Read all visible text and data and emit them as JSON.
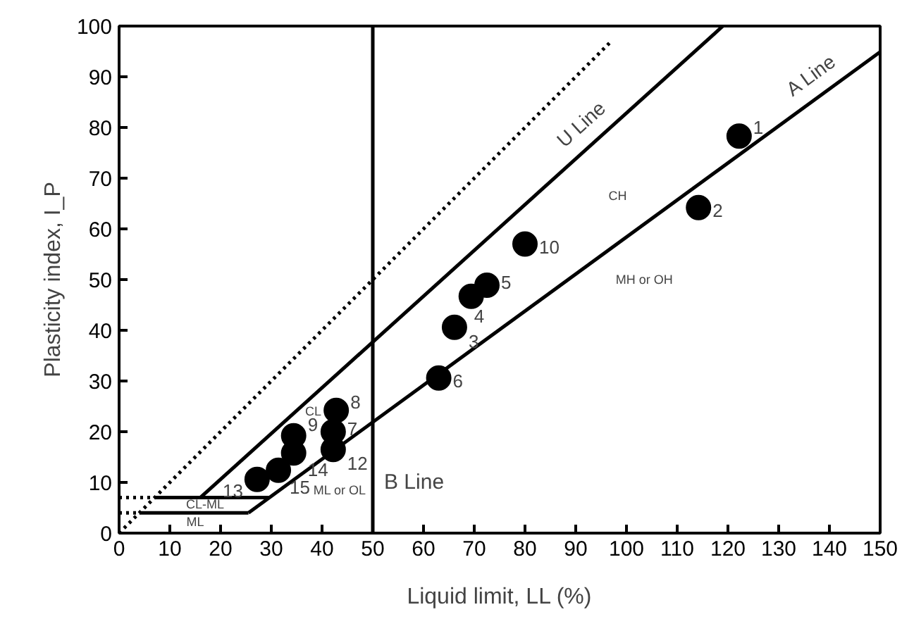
{
  "chart_data": {
    "type": "scatter",
    "xlabel": "Liquid limit, LL (%)",
    "ylabel": "Plasticity index, I_P",
    "xlim": [
      0,
      150
    ],
    "ylim": [
      0,
      100
    ],
    "xticks": [
      0,
      10,
      20,
      30,
      40,
      50,
      60,
      70,
      80,
      90,
      100,
      110,
      120,
      130,
      140,
      150
    ],
    "yticks": [
      0,
      10,
      20,
      30,
      40,
      50,
      60,
      70,
      80,
      90,
      100
    ],
    "grid": false,
    "series": [
      {
        "color": "#000000",
        "marker": "circle",
        "x": [
          122.2,
          114.2,
          66.1,
          69.4,
          72.5,
          63,
          42.2,
          42.8,
          34.4,
          80,
          42.2,
          27.2,
          34.4,
          31.4
        ],
        "values": [
          78.3,
          64.2,
          40.6,
          46.7,
          48.9,
          30.6,
          20,
          24.2,
          19.2,
          57,
          16.5,
          10.6,
          15.8,
          12.4
        ]
      },
      {
        "type": "line",
        "color": "#000000",
        "line_style": "dotted",
        "x": [
          0,
          97
        ],
        "values": [
          0,
          97
        ]
      },
      {
        "type": "line",
        "color": "#000000",
        "line_style": "solid",
        "x": [
          16,
          119
        ],
        "values": [
          7,
          100
        ]
      },
      {
        "type": "line",
        "color": "#000000",
        "line_style": "solid",
        "x": [
          25.5,
          150
        ],
        "values": [
          4,
          94.9
        ]
      },
      {
        "type": "line",
        "color": "#000000",
        "line_style": "solid",
        "x": [
          7,
          29.6
        ],
        "values": [
          7,
          7
        ]
      },
      {
        "type": "line",
        "color": "#000000",
        "line_style": "solid",
        "x": [
          4,
          25.5
        ],
        "values": [
          4,
          4
        ]
      },
      {
        "type": "line",
        "color": "#000000",
        "line_style": "dotted",
        "x": [
          0,
          7
        ],
        "values": [
          7,
          7
        ]
      },
      {
        "type": "line",
        "color": "#000000",
        "line_style": "dotted",
        "x": [
          0,
          4
        ],
        "values": [
          4,
          4
        ]
      }
    ],
    "ref_lines": [
      {
        "axis": "x",
        "value": 50,
        "label": "B Line",
        "color": "#000000",
        "line_style": "solid"
      }
    ],
    "annotations": [
      {
        "text": "1",
        "x": 122.2,
        "y": 78.3
      },
      {
        "text": "2",
        "x": 114.2,
        "y": 64.2
      },
      {
        "text": "3",
        "x": 66.1,
        "y": 40.6
      },
      {
        "text": "4",
        "x": 69.4,
        "y": 46.7
      },
      {
        "text": "5",
        "x": 72.5,
        "y": 48.9
      },
      {
        "text": "6",
        "x": 63,
        "y": 30.6
      },
      {
        "text": "7",
        "x": 42.2,
        "y": 20
      },
      {
        "text": "8",
        "x": 42.8,
        "y": 24.2
      },
      {
        "text": "9",
        "x": 34.4,
        "y": 19.2
      },
      {
        "text": "10",
        "x": 80,
        "y": 57
      },
      {
        "text": "12",
        "x": 42.2,
        "y": 16.5
      },
      {
        "text": "13",
        "x": 27.2,
        "y": 10.6
      },
      {
        "text": "14",
        "x": 34.4,
        "y": 15.8
      },
      {
        "text": "15",
        "x": 31.4,
        "y": 12.4
      },
      {
        "text": "U Line",
        "x": 94,
        "y": 77.4
      },
      {
        "text": "A Line",
        "x": 139,
        "y": 86.8
      },
      "CH",
      "CL",
      "MH or OH",
      "ML or OL",
      "CL-ML",
      "ML"
    ]
  }
}
